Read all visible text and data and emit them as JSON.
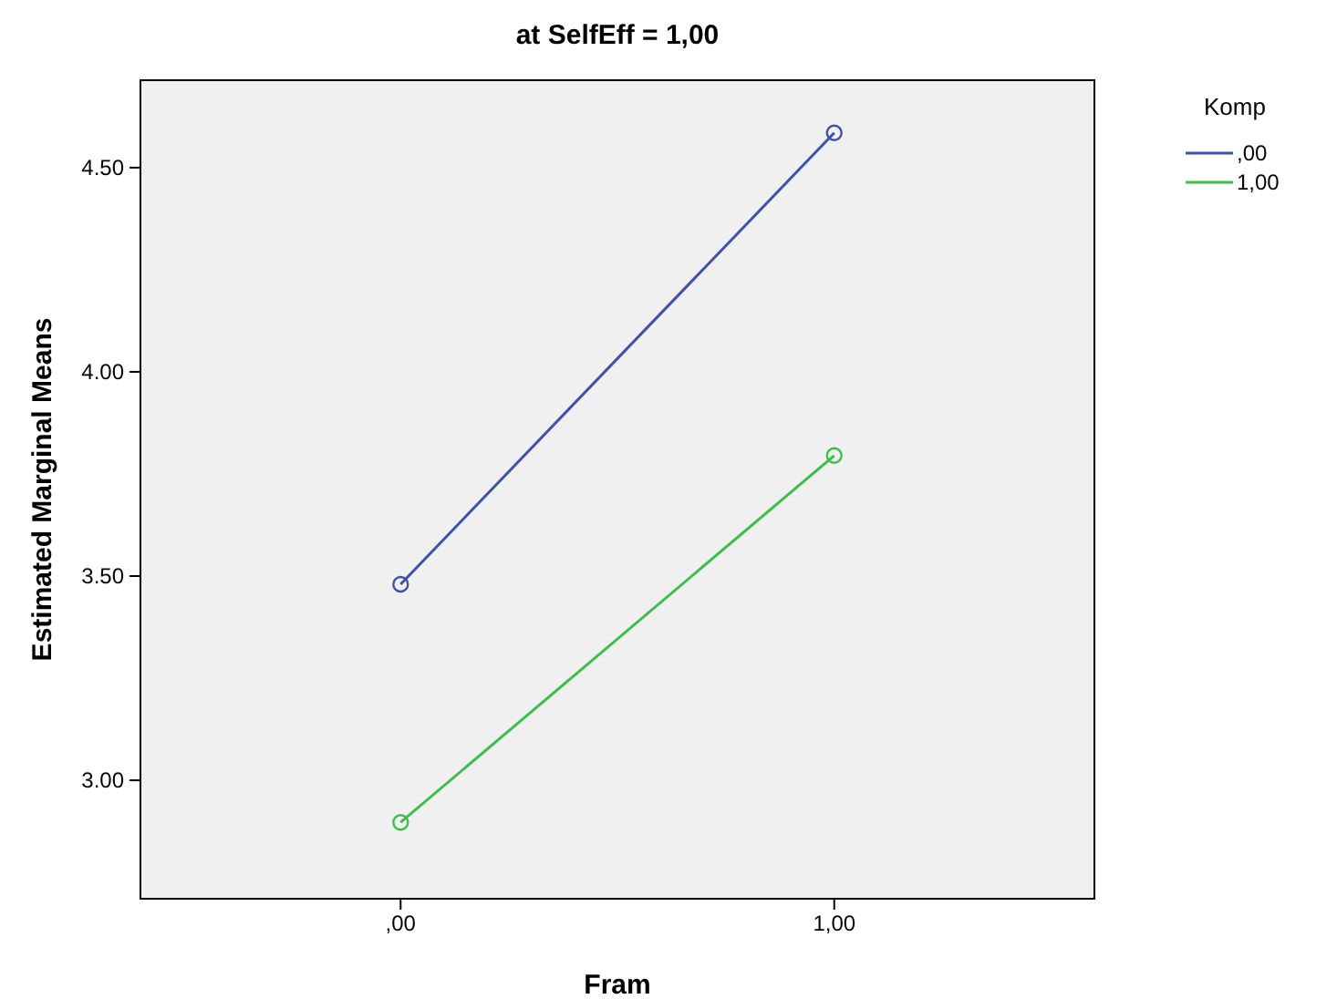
{
  "chart_data": {
    "type": "line",
    "title": "at SelfEff = 1,00",
    "xlabel": "Fram",
    "ylabel": "Estimated Marginal Means",
    "legend_title": "Komp",
    "legend": "right",
    "marker": "circle",
    "grid": false,
    "categories": [
      ",00",
      "1,00"
    ],
    "series": [
      {
        "name": ",00",
        "color": "#3f51a8",
        "values": [
          3.48,
          4.585
        ]
      },
      {
        "name": "1,00",
        "color": "#3cbf4a",
        "values": [
          2.897,
          3.795
        ]
      }
    ],
    "ylim": [
      2.71,
      4.714
    ],
    "yticks": [
      {
        "value": 3,
        "label": "3.00"
      },
      {
        "value": 3.5,
        "label": "3.50"
      },
      {
        "value": 4,
        "label": "4.00"
      },
      {
        "value": 4.5,
        "label": "4.50"
      }
    ]
  }
}
